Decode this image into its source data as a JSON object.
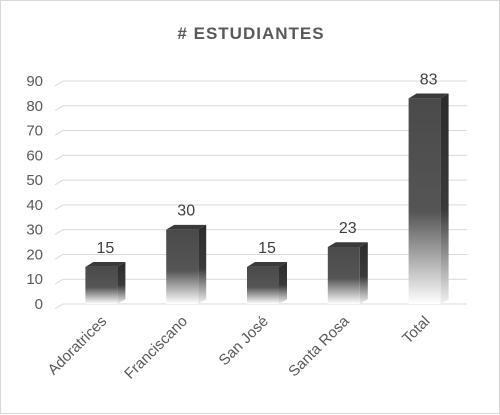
{
  "chart_data": {
    "type": "bar",
    "title": "# ESTUDIANTES",
    "categories": [
      "Adoratrices",
      "Franciscano",
      "San José",
      "Santa Rosa",
      "Total"
    ],
    "values": [
      15,
      30,
      15,
      23,
      83
    ],
    "data_labels": [
      "15",
      "30",
      "15",
      "23",
      "83"
    ],
    "y_ticks": [
      "0",
      "10",
      "20",
      "30",
      "40",
      "50",
      "60",
      "70",
      "80",
      "90"
    ],
    "ylim": [
      0,
      90
    ],
    "grid": true,
    "legend": "none",
    "colors": {
      "bar_top": "#4a4a4a",
      "bar_bottom": "#ffffff",
      "bar_side": "#2b2b2b",
      "bar_cap": "#3a3a3a",
      "grid": "#d9d9d9",
      "text": "#595959"
    }
  }
}
